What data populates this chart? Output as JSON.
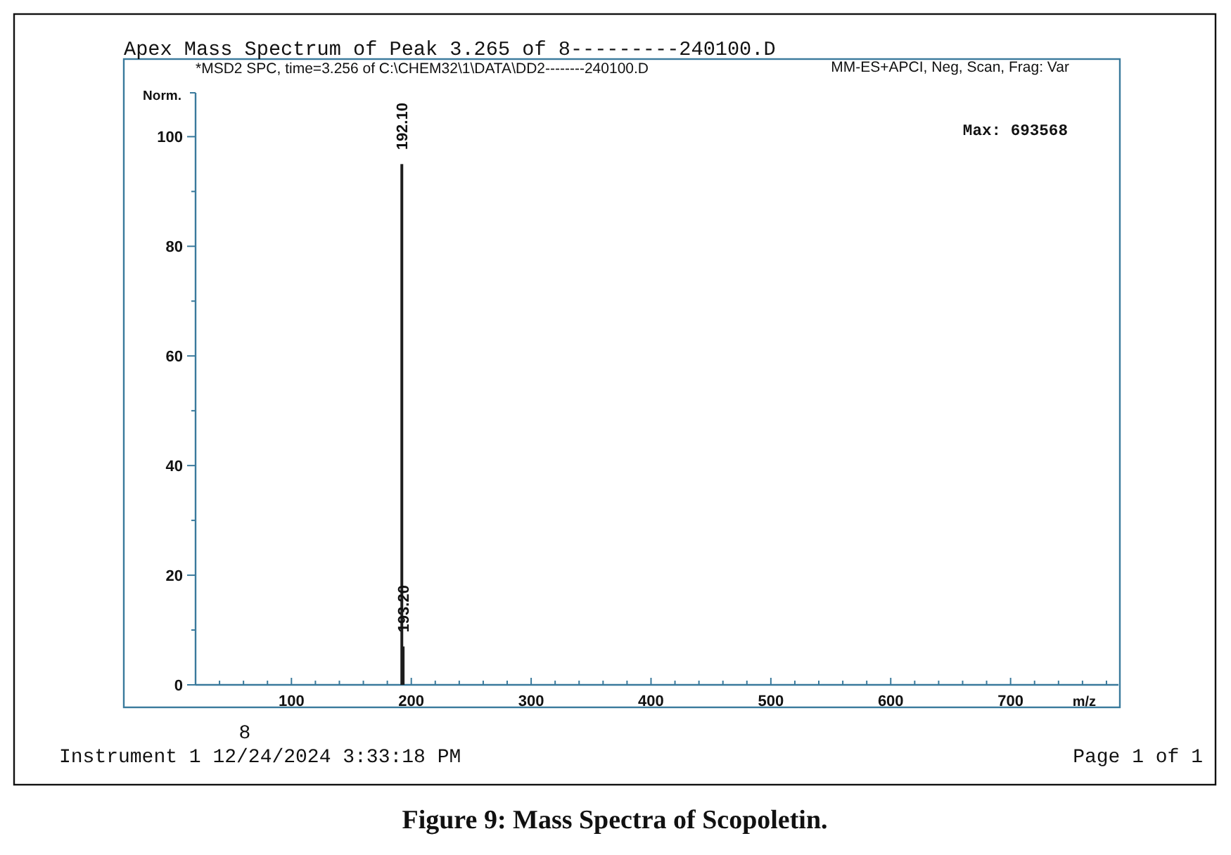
{
  "chart_data": {
    "type": "bar",
    "title": "Apex Mass Spectrum of Peak 3.265 of 8---------240100.D",
    "subtitle": "*MSD2 SPC, time=3.256 of C:\\CHEM32\\1\\DATA\\DD2--------240100.D",
    "xlabel": "m/z",
    "ylabel": "Norm.",
    "x": [
      192.1,
      193.2
    ],
    "values": [
      95,
      7
    ],
    "color": "#1e1e1e",
    "xlim": [
      20,
      790
    ],
    "xticks": [
      {
        "value": 40,
        "label": null
      },
      {
        "value": 60,
        "label": null
      },
      {
        "value": 80,
        "label": null
      },
      100,
      {
        "value": 120,
        "label": null
      },
      {
        "value": 140,
        "label": null
      },
      {
        "value": 160,
        "label": null
      },
      {
        "value": 180,
        "label": null
      },
      200,
      {
        "value": 220,
        "label": null
      },
      {
        "value": 240,
        "label": null
      },
      {
        "value": 260,
        "label": null
      },
      {
        "value": 280,
        "label": null
      },
      300,
      {
        "value": 320,
        "label": null
      },
      {
        "value": 340,
        "label": null
      },
      {
        "value": 360,
        "label": null
      },
      {
        "value": 380,
        "label": null
      },
      400,
      {
        "value": 420,
        "label": null
      },
      {
        "value": 440,
        "label": null
      },
      {
        "value": 460,
        "label": null
      },
      {
        "value": 480,
        "label": null
      },
      500,
      {
        "value": 520,
        "label": null
      },
      {
        "value": 540,
        "label": null
      },
      {
        "value": 560,
        "label": null
      },
      {
        "value": 580,
        "label": null
      },
      600,
      {
        "value": 620,
        "label": null
      },
      {
        "value": 640,
        "label": null
      },
      {
        "value": 660,
        "label": null
      },
      {
        "value": 680,
        "label": null
      },
      700,
      {
        "value": 720,
        "label": null
      },
      {
        "value": 740,
        "label": null
      },
      {
        "value": 760,
        "label": null
      },
      {
        "value": 780,
        "label": null
      }
    ],
    "ylim": [
      0,
      108
    ],
    "yticks": [
      0,
      {
        "value": 10,
        "label": null
      },
      20,
      {
        "value": 30,
        "label": null
      },
      40,
      {
        "value": 50,
        "label": null
      },
      60,
      {
        "value": 70,
        "label": null
      },
      80,
      {
        "value": 90,
        "label": null
      },
      100
    ],
    "annotations": [
      {
        "text": "192.10",
        "x": 192.1,
        "y": 95
      },
      {
        "text": "193.20",
        "x": 193.2,
        "y": 7
      },
      "MM-ES+APCI, Neg, Scan, Frag: Var",
      "Max: 693568",
      "8",
      "Instrument 1 12/24/2024 3:33:18 PM",
      "Page 1 of 1",
      "Figure 9: Mass Spectra of Scopoletin."
    ]
  }
}
